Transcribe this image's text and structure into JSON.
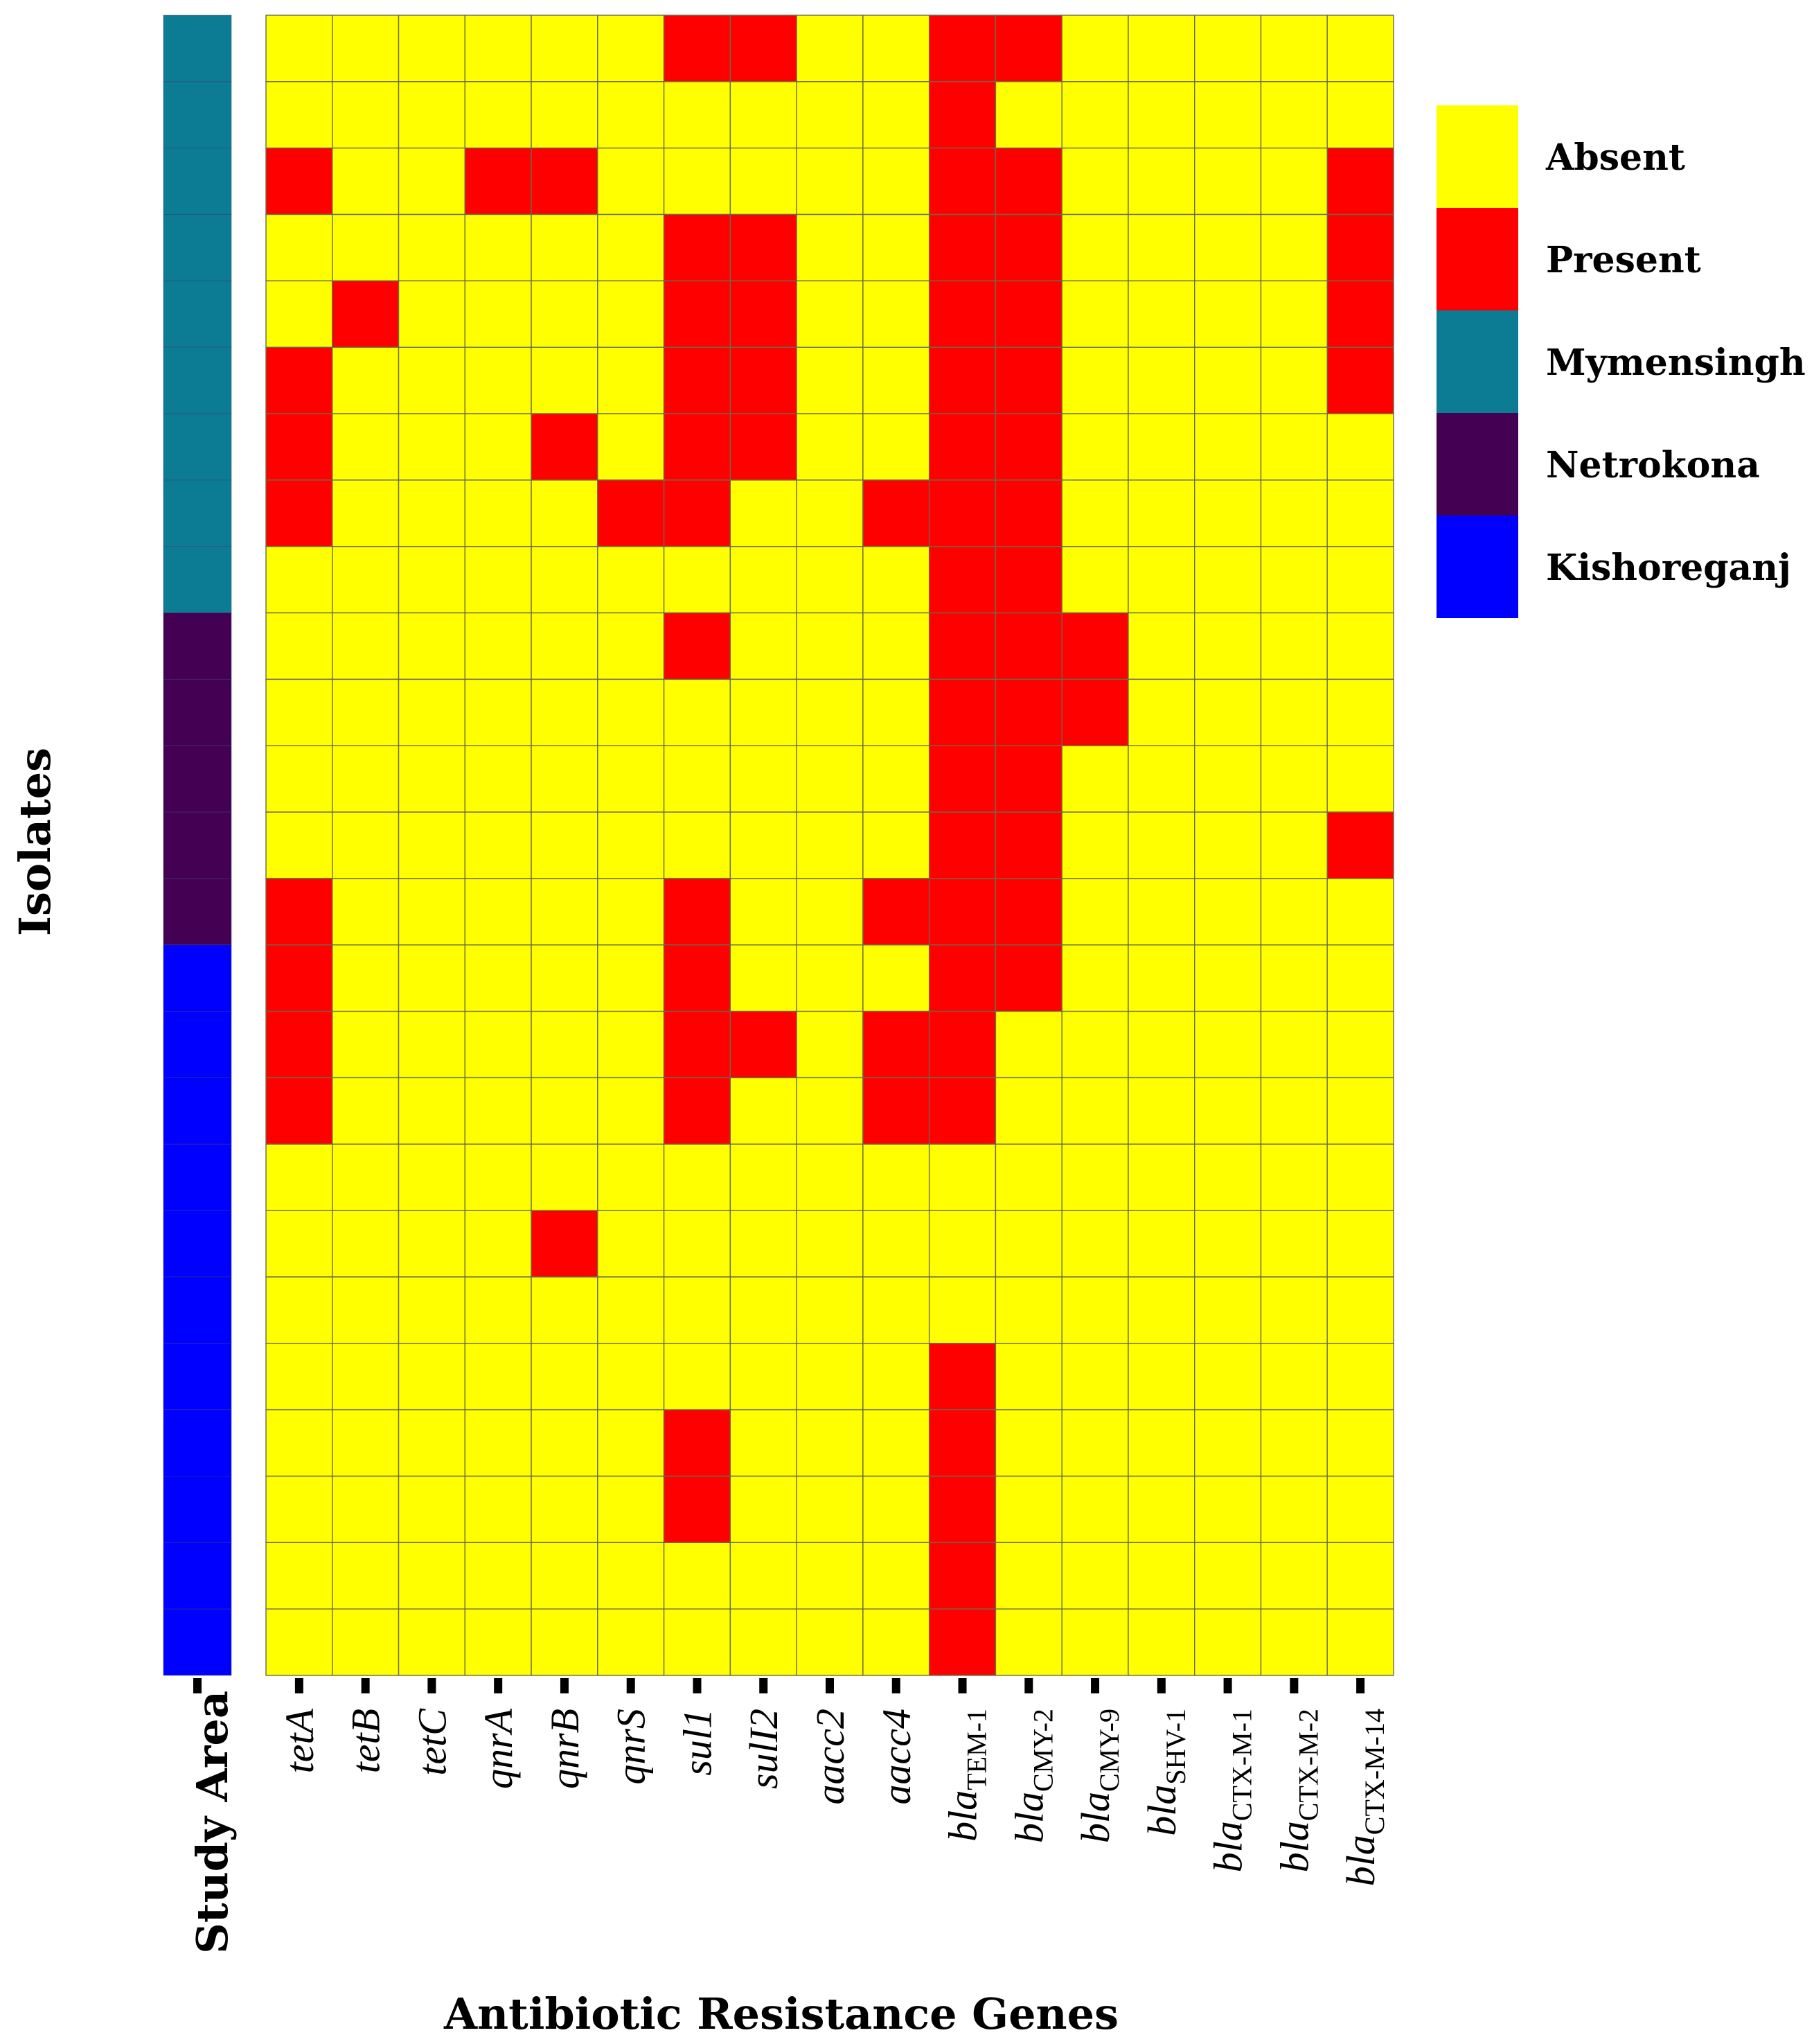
{
  "chart_data": {
    "type": "heatmap",
    "xlabel": "Antibiotic Resistance Genes",
    "ylabel": "Isolates",
    "annotation_label": "Study Area",
    "genes": [
      {
        "base": "tetA",
        "sub": ""
      },
      {
        "base": "tetB",
        "sub": ""
      },
      {
        "base": "tetC",
        "sub": ""
      },
      {
        "base": "qnrA",
        "sub": ""
      },
      {
        "base": "qnrB",
        "sub": ""
      },
      {
        "base": "qnrS",
        "sub": ""
      },
      {
        "base": "sul1",
        "sub": ""
      },
      {
        "base": "sulI2",
        "sub": ""
      },
      {
        "base": "aacc2",
        "sub": ""
      },
      {
        "base": "aacc4",
        "sub": ""
      },
      {
        "base": "bla",
        "sub": "TEM-1"
      },
      {
        "base": "bla",
        "sub": "CMY-2"
      },
      {
        "base": "bla",
        "sub": "CMY-9"
      },
      {
        "base": "bla",
        "sub": "SHV-1"
      },
      {
        "base": "bla",
        "sub": "CTX-M-1"
      },
      {
        "base": "bla",
        "sub": "CTX-M-2"
      },
      {
        "base": "bla",
        "sub": "CTX-M-14"
      }
    ],
    "study_area": [
      "Mymensingh",
      "Mymensingh",
      "Mymensingh",
      "Mymensingh",
      "Mymensingh",
      "Mymensingh",
      "Mymensingh",
      "Mymensingh",
      "Mymensingh",
      "Netrokona",
      "Netrokona",
      "Netrokona",
      "Netrokona",
      "Netrokona",
      "Kishoreganj",
      "Kishoreganj",
      "Kishoreganj",
      "Kishoreganj",
      "Kishoreganj",
      "Kishoreganj",
      "Kishoreganj",
      "Kishoreganj",
      "Kishoreganj",
      "Kishoreganj",
      "Kishoreganj"
    ],
    "matrix": [
      [
        0,
        0,
        0,
        0,
        0,
        0,
        1,
        1,
        0,
        0,
        1,
        1,
        0,
        0,
        0,
        0,
        0
      ],
      [
        0,
        0,
        0,
        0,
        0,
        0,
        0,
        0,
        0,
        0,
        1,
        0,
        0,
        0,
        0,
        0,
        0
      ],
      [
        1,
        0,
        0,
        1,
        1,
        0,
        0,
        0,
        0,
        0,
        1,
        1,
        0,
        0,
        0,
        0,
        1
      ],
      [
        0,
        0,
        0,
        0,
        0,
        0,
        1,
        1,
        0,
        0,
        1,
        1,
        0,
        0,
        0,
        0,
        1
      ],
      [
        0,
        1,
        0,
        0,
        0,
        0,
        1,
        1,
        0,
        0,
        1,
        1,
        0,
        0,
        0,
        0,
        1
      ],
      [
        1,
        0,
        0,
        0,
        0,
        0,
        1,
        1,
        0,
        0,
        1,
        1,
        0,
        0,
        0,
        0,
        1
      ],
      [
        1,
        0,
        0,
        0,
        1,
        0,
        1,
        1,
        0,
        0,
        1,
        1,
        0,
        0,
        0,
        0,
        0
      ],
      [
        1,
        0,
        0,
        0,
        0,
        1,
        1,
        0,
        0,
        1,
        1,
        1,
        0,
        0,
        0,
        0,
        0
      ],
      [
        0,
        0,
        0,
        0,
        0,
        0,
        0,
        0,
        0,
        0,
        1,
        1,
        0,
        0,
        0,
        0,
        0
      ],
      [
        0,
        0,
        0,
        0,
        0,
        0,
        1,
        0,
        0,
        0,
        1,
        1,
        1,
        0,
        0,
        0,
        0
      ],
      [
        0,
        0,
        0,
        0,
        0,
        0,
        0,
        0,
        0,
        0,
        1,
        1,
        1,
        0,
        0,
        0,
        0
      ],
      [
        0,
        0,
        0,
        0,
        0,
        0,
        0,
        0,
        0,
        0,
        1,
        1,
        0,
        0,
        0,
        0,
        0
      ],
      [
        0,
        0,
        0,
        0,
        0,
        0,
        0,
        0,
        0,
        0,
        1,
        1,
        0,
        0,
        0,
        0,
        1
      ],
      [
        1,
        0,
        0,
        0,
        0,
        0,
        1,
        0,
        0,
        1,
        1,
        1,
        0,
        0,
        0,
        0,
        0
      ],
      [
        1,
        0,
        0,
        0,
        0,
        0,
        1,
        0,
        0,
        0,
        1,
        1,
        0,
        0,
        0,
        0,
        0
      ],
      [
        1,
        0,
        0,
        0,
        0,
        0,
        1,
        1,
        0,
        1,
        1,
        0,
        0,
        0,
        0,
        0,
        0
      ],
      [
        1,
        0,
        0,
        0,
        0,
        0,
        1,
        0,
        0,
        1,
        1,
        0,
        0,
        0,
        0,
        0,
        0
      ],
      [
        0,
        0,
        0,
        0,
        0,
        0,
        0,
        0,
        0,
        0,
        0,
        0,
        0,
        0,
        0,
        0,
        0
      ],
      [
        0,
        0,
        0,
        0,
        1,
        0,
        0,
        0,
        0,
        0,
        0,
        0,
        0,
        0,
        0,
        0,
        0
      ],
      [
        0,
        0,
        0,
        0,
        0,
        0,
        0,
        0,
        0,
        0,
        0,
        0,
        0,
        0,
        0,
        0,
        0
      ],
      [
        0,
        0,
        0,
        0,
        0,
        0,
        0,
        0,
        0,
        0,
        1,
        0,
        0,
        0,
        0,
        0,
        0
      ],
      [
        0,
        0,
        0,
        0,
        0,
        0,
        1,
        0,
        0,
        0,
        1,
        0,
        0,
        0,
        0,
        0,
        0
      ],
      [
        0,
        0,
        0,
        0,
        0,
        0,
        1,
        0,
        0,
        0,
        1,
        0,
        0,
        0,
        0,
        0,
        0
      ],
      [
        0,
        0,
        0,
        0,
        0,
        0,
        0,
        0,
        0,
        0,
        1,
        0,
        0,
        0,
        0,
        0,
        0
      ],
      [
        0,
        0,
        0,
        0,
        0,
        0,
        0,
        0,
        0,
        0,
        1,
        0,
        0,
        0,
        0,
        0,
        0
      ]
    ],
    "value_labels": {
      "0": "Absent",
      "1": "Present"
    },
    "colors": {
      "Absent": "#ffff00",
      "Present": "#ff0000",
      "Mymensingh": "#0c7b94",
      "Netrokona": "#440154",
      "Kishoreganj": "#0000ff"
    },
    "legend": [
      {
        "label": "Absent",
        "color": "#ffff00"
      },
      {
        "label": "Present",
        "color": "#ff0000"
      },
      {
        "label": "Mymensingh",
        "color": "#0c7b94"
      },
      {
        "label": "Netrokona",
        "color": "#440154"
      },
      {
        "label": "Kishoreganj",
        "color": "#0000ff"
      }
    ],
    "legend_position": "top-right"
  }
}
